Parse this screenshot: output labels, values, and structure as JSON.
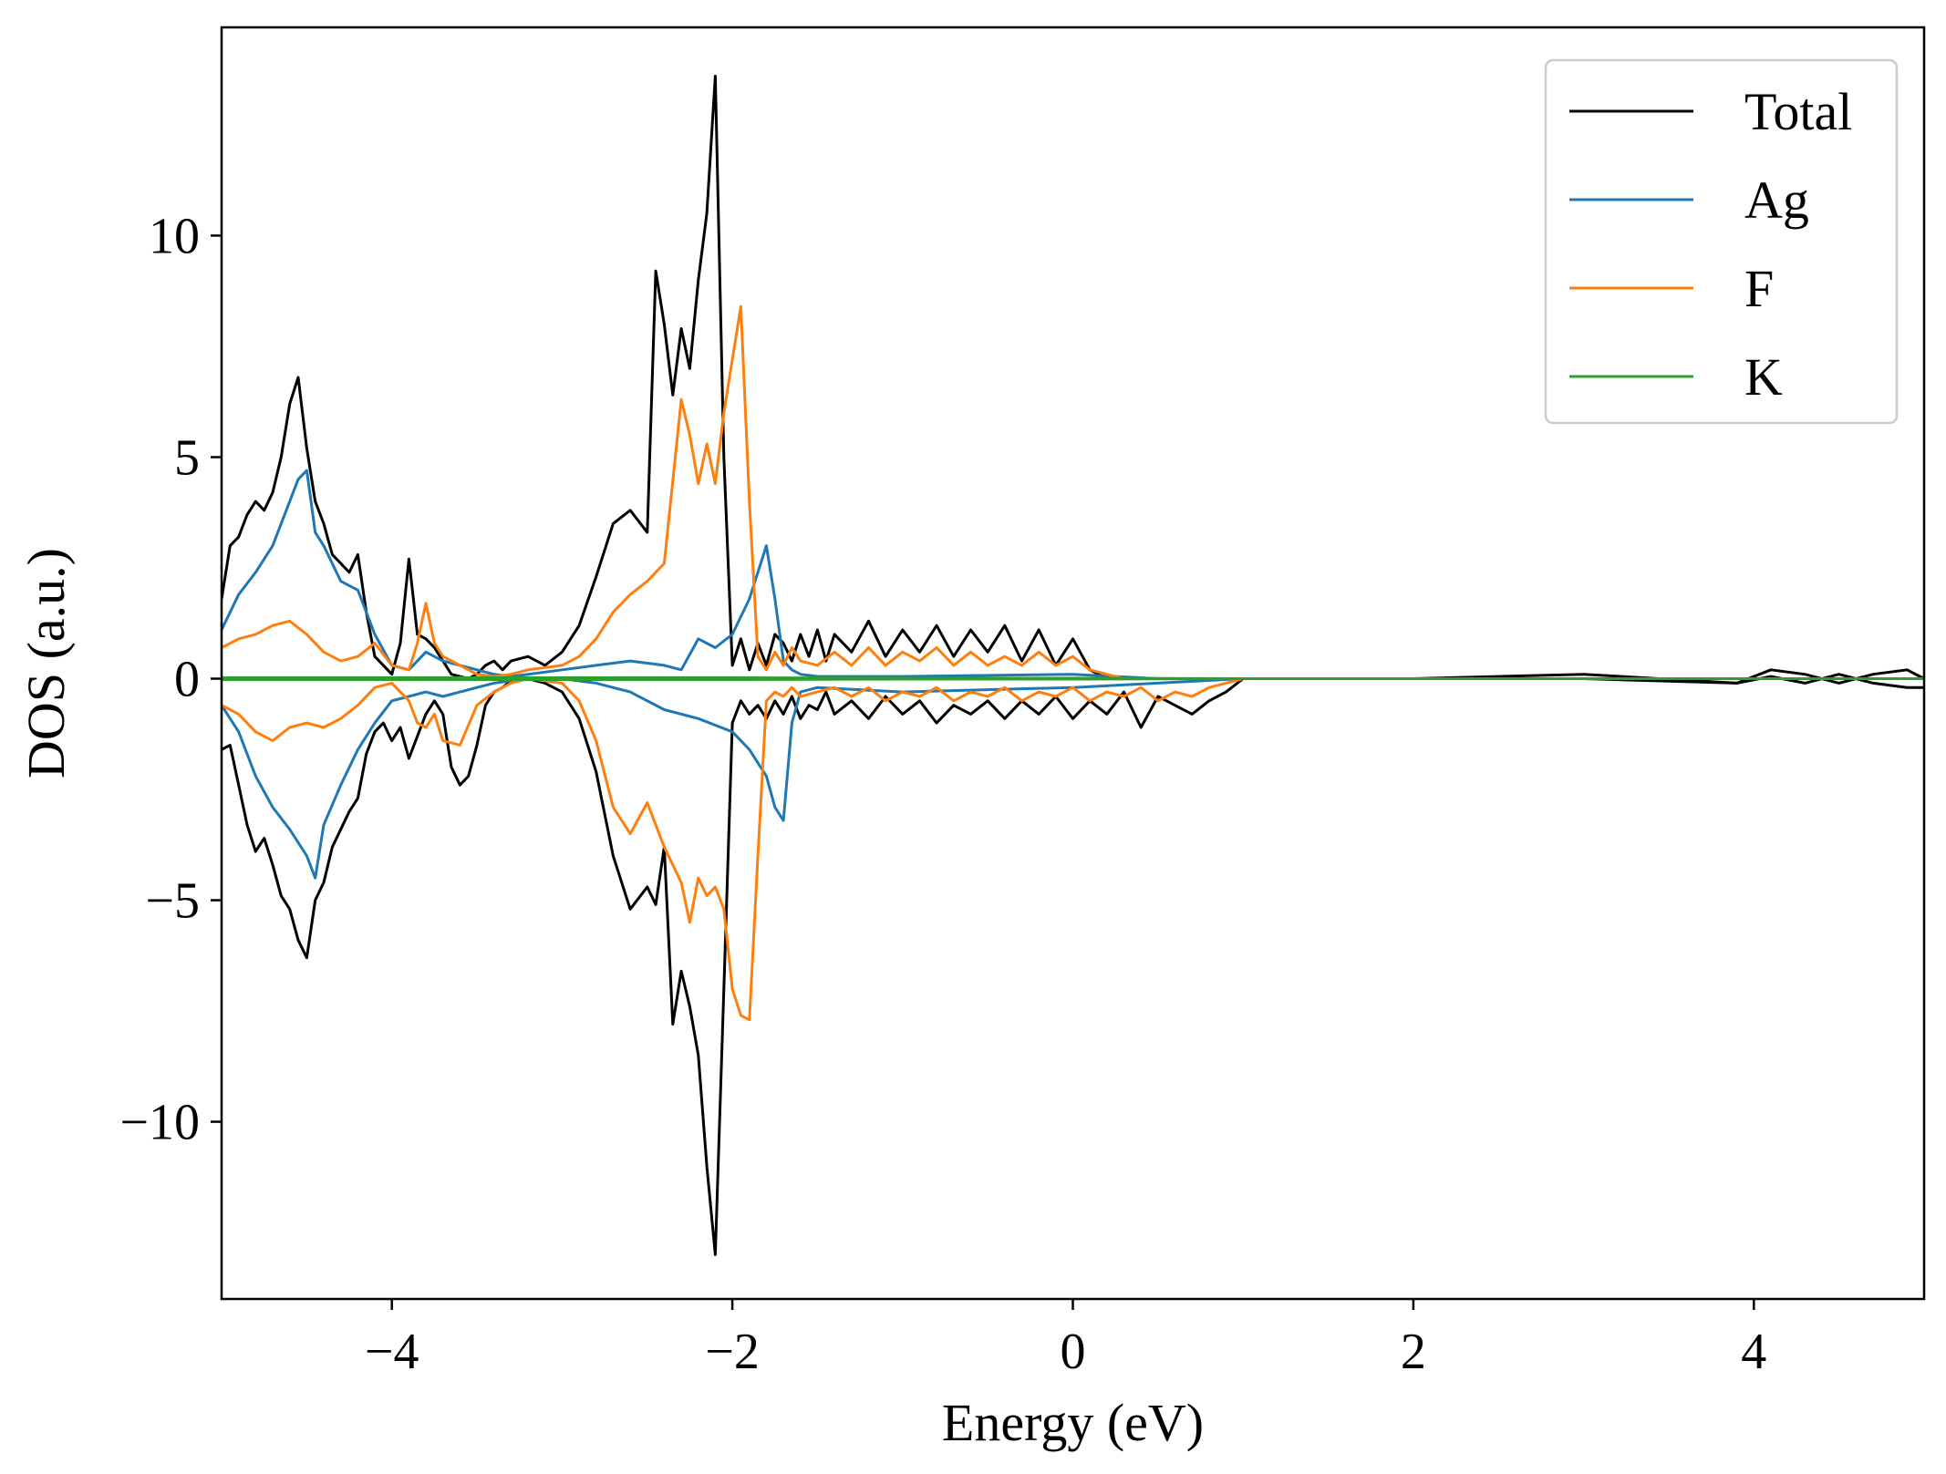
{
  "chart_data": {
    "type": "line",
    "title": "",
    "xlabel": "Energy (eV)",
    "ylabel": "DOS (a.u.)",
    "xlim": [
      -5,
      5
    ],
    "ylim": [
      -14,
      14.7
    ],
    "grid": false,
    "legend_position": "top-right",
    "xticks": [
      {
        "value": -4,
        "label": "−4"
      },
      {
        "value": -2,
        "label": "−2"
      },
      {
        "value": 0,
        "label": "0"
      },
      {
        "value": 2,
        "label": "2"
      },
      {
        "value": 4,
        "label": "4"
      }
    ],
    "yticks": [
      {
        "value": -10,
        "label": "−10"
      },
      {
        "value": -5,
        "label": "−5"
      },
      {
        "value": 0,
        "label": "0"
      },
      {
        "value": 5,
        "label": "5"
      },
      {
        "value": 10,
        "label": "10"
      }
    ],
    "series": [
      {
        "name": "Total",
        "color": "#000000",
        "segments": [
          {
            "x": [
              -5.0,
              -4.95,
              -4.9,
              -4.85,
              -4.8,
              -4.75,
              -4.7,
              -4.65,
              -4.6,
              -4.55,
              -4.5,
              -4.45,
              -4.4,
              -4.35,
              -4.3,
              -4.25,
              -4.2,
              -4.15,
              -4.1,
              -4.05,
              -4.0,
              -3.95,
              -3.9,
              -3.85,
              -3.8,
              -3.75,
              -3.7,
              -3.65,
              -3.6,
              -3.55,
              -3.5,
              -3.45,
              -3.4,
              -3.35,
              -3.3,
              -3.2,
              -3.1,
              -3.0,
              -2.9,
              -2.8,
              -2.7,
              -2.6,
              -2.5,
              -2.45,
              -2.4,
              -2.35,
              -2.3,
              -2.25,
              -2.2,
              -2.15,
              -2.1,
              -2.05,
              -2.0,
              -1.95,
              -1.9,
              -1.85,
              -1.8,
              -1.75,
              -1.7,
              -1.65,
              -1.6,
              -1.55,
              -1.5,
              -1.45,
              -1.4,
              -1.3,
              -1.2,
              -1.1,
              -1.0,
              -0.9,
              -0.8,
              -0.7,
              -0.6,
              -0.5,
              -0.4,
              -0.3,
              -0.2,
              -0.1,
              0.0,
              0.1,
              0.2,
              0.3,
              0.4,
              0.5,
              0.6,
              1.0,
              2.0,
              3.0,
              3.9,
              4.1,
              4.3,
              4.5,
              4.7,
              4.9,
              5.0
            ],
            "y": [
              1.8,
              3.0,
              3.2,
              3.7,
              4.0,
              3.8,
              4.2,
              5.0,
              6.2,
              6.8,
              5.2,
              4.0,
              3.5,
              2.8,
              2.6,
              2.4,
              2.8,
              1.5,
              0.5,
              0.3,
              0.1,
              0.8,
              2.7,
              1.0,
              0.9,
              0.7,
              0.4,
              0.1,
              0.05,
              0.0,
              0.1,
              0.3,
              0.4,
              0.2,
              0.4,
              0.5,
              0.3,
              0.6,
              1.2,
              2.3,
              3.5,
              3.8,
              3.3,
              9.2,
              8.0,
              6.4,
              7.9,
              7.0,
              9.0,
              10.5,
              13.6,
              5.0,
              0.3,
              0.9,
              0.2,
              0.8,
              0.3,
              1.0,
              0.8,
              0.4,
              1.0,
              0.5,
              1.1,
              0.4,
              1.0,
              0.6,
              1.3,
              0.5,
              1.1,
              0.6,
              1.2,
              0.5,
              1.1,
              0.6,
              1.2,
              0.4,
              1.1,
              0.3,
              0.9,
              0.2,
              0.0,
              0.0,
              0.0,
              0.0,
              0.0,
              0.0,
              0.0,
              0.1,
              -0.1,
              0.2,
              0.1,
              -0.1,
              0.1,
              0.2,
              0.0
            ]
          },
          {
            "x": [
              -5.0,
              -4.95,
              -4.9,
              -4.85,
              -4.8,
              -4.75,
              -4.7,
              -4.65,
              -4.6,
              -4.55,
              -4.5,
              -4.45,
              -4.4,
              -4.35,
              -4.3,
              -4.25,
              -4.2,
              -4.15,
              -4.1,
              -4.05,
              -4.0,
              -3.95,
              -3.9,
              -3.85,
              -3.8,
              -3.75,
              -3.7,
              -3.65,
              -3.6,
              -3.55,
              -3.5,
              -3.45,
              -3.4,
              -3.35,
              -3.3,
              -3.2,
              -3.1,
              -3.0,
              -2.9,
              -2.8,
              -2.7,
              -2.6,
              -2.5,
              -2.45,
              -2.4,
              -2.35,
              -2.3,
              -2.25,
              -2.2,
              -2.15,
              -2.1,
              -2.05,
              -2.0,
              -1.95,
              -1.9,
              -1.85,
              -1.8,
              -1.75,
              -1.7,
              -1.65,
              -1.6,
              -1.55,
              -1.5,
              -1.45,
              -1.4,
              -1.3,
              -1.2,
              -1.1,
              -1.0,
              -0.9,
              -0.8,
              -0.7,
              -0.6,
              -0.5,
              -0.4,
              -0.3,
              -0.2,
              -0.1,
              0.0,
              0.1,
              0.2,
              0.3,
              0.4,
              0.5,
              0.6,
              0.7,
              0.8,
              0.9,
              1.0,
              1.1,
              2.0,
              3.0,
              3.9,
              4.1,
              4.3,
              4.5,
              4.7,
              4.9,
              5.0
            ],
            "y": [
              -1.6,
              -1.5,
              -2.4,
              -3.3,
              -3.9,
              -3.6,
              -4.2,
              -4.9,
              -5.2,
              -5.9,
              -6.3,
              -5.0,
              -4.6,
              -3.8,
              -3.4,
              -3.0,
              -2.7,
              -1.7,
              -1.2,
              -1.0,
              -1.4,
              -1.1,
              -1.8,
              -1.3,
              -0.8,
              -0.5,
              -0.8,
              -2.0,
              -2.4,
              -2.2,
              -1.5,
              -0.6,
              -0.3,
              -0.2,
              -0.05,
              0.0,
              -0.1,
              -0.3,
              -0.9,
              -2.1,
              -4.0,
              -5.2,
              -4.7,
              -5.1,
              -3.8,
              -7.8,
              -6.6,
              -7.4,
              -8.5,
              -11.0,
              -13.0,
              -7.0,
              -1.0,
              -0.5,
              -0.8,
              -0.6,
              -0.9,
              -0.5,
              -0.8,
              -0.4,
              -0.9,
              -0.6,
              -0.7,
              -0.3,
              -0.8,
              -0.5,
              -0.9,
              -0.4,
              -0.8,
              -0.5,
              -1.0,
              -0.6,
              -0.8,
              -0.5,
              -0.9,
              -0.5,
              -0.8,
              -0.4,
              -0.9,
              -0.5,
              -0.8,
              -0.3,
              -1.1,
              -0.4,
              -0.6,
              -0.8,
              -0.5,
              -0.3,
              -0.0,
              0.0,
              0.0,
              0.0,
              -0.1,
              0.05,
              -0.1,
              0.1,
              -0.1,
              -0.2,
              -0.2
            ]
          }
        ]
      },
      {
        "name": "Ag",
        "color": "#1f77b4",
        "segments": [
          {
            "x": [
              -5.0,
              -4.9,
              -4.8,
              -4.7,
              -4.6,
              -4.55,
              -4.5,
              -4.45,
              -4.4,
              -4.3,
              -4.2,
              -4.1,
              -4.0,
              -3.9,
              -3.8,
              -3.7,
              -3.6,
              -3.5,
              -3.4,
              -3.3,
              -3.2,
              -3.0,
              -2.8,
              -2.6,
              -2.4,
              -2.3,
              -2.2,
              -2.1,
              -2.0,
              -1.9,
              -1.8,
              -1.75,
              -1.7,
              -1.65,
              -1.6,
              -1.5,
              -1.0,
              0.0,
              0.5,
              1.0,
              5.0
            ],
            "y": [
              1.1,
              1.9,
              2.4,
              3.0,
              4.0,
              4.5,
              4.7,
              3.3,
              3.0,
              2.2,
              2.0,
              1.0,
              0.3,
              0.2,
              0.6,
              0.4,
              0.3,
              0.2,
              0.1,
              0.05,
              0.1,
              0.2,
              0.3,
              0.4,
              0.3,
              0.2,
              0.9,
              0.7,
              1.0,
              1.8,
              3.0,
              1.8,
              0.4,
              0.2,
              0.1,
              0.05,
              0.05,
              0.1,
              0.0,
              0.0,
              0.0
            ]
          },
          {
            "x": [
              -5.0,
              -4.9,
              -4.8,
              -4.7,
              -4.6,
              -4.5,
              -4.45,
              -4.4,
              -4.3,
              -4.2,
              -4.1,
              -4.0,
              -3.9,
              -3.8,
              -3.7,
              -3.6,
              -3.5,
              -3.4,
              -3.3,
              -3.2,
              -3.0,
              -2.8,
              -2.6,
              -2.4,
              -2.2,
              -2.0,
              -1.9,
              -1.8,
              -1.75,
              -1.7,
              -1.65,
              -1.6,
              -1.5,
              -1.0,
              0.0,
              0.5,
              1.0,
              5.0
            ],
            "y": [
              -0.6,
              -1.2,
              -2.2,
              -2.9,
              -3.4,
              -4.0,
              -4.5,
              -3.3,
              -2.4,
              -1.6,
              -1.0,
              -0.5,
              -0.4,
              -0.3,
              -0.4,
              -0.3,
              -0.2,
              -0.1,
              -0.05,
              0.0,
              0.0,
              -0.1,
              -0.3,
              -0.7,
              -0.9,
              -1.2,
              -1.6,
              -2.2,
              -2.9,
              -3.2,
              -1.0,
              -0.3,
              -0.2,
              -0.3,
              -0.2,
              -0.1,
              0.0,
              0.0
            ]
          }
        ]
      },
      {
        "name": "F",
        "color": "#ff7f0e",
        "segments": [
          {
            "x": [
              -5.0,
              -4.9,
              -4.8,
              -4.7,
              -4.6,
              -4.5,
              -4.4,
              -4.3,
              -4.2,
              -4.1,
              -4.0,
              -3.9,
              -3.85,
              -3.8,
              -3.75,
              -3.7,
              -3.6,
              -3.5,
              -3.4,
              -3.3,
              -3.2,
              -3.0,
              -2.9,
              -2.8,
              -2.7,
              -2.6,
              -2.5,
              -2.4,
              -2.3,
              -2.25,
              -2.2,
              -2.15,
              -2.1,
              -2.05,
              -2.0,
              -1.95,
              -1.9,
              -1.85,
              -1.8,
              -1.75,
              -1.7,
              -1.65,
              -1.6,
              -1.5,
              -1.4,
              -1.3,
              -1.2,
              -1.1,
              -1.0,
              -0.9,
              -0.8,
              -0.7,
              -0.6,
              -0.5,
              -0.4,
              -0.3,
              -0.2,
              -0.1,
              0.0,
              0.1,
              0.2,
              0.3,
              0.4,
              0.5,
              0.6,
              1.0,
              2.0,
              5.0
            ],
            "y": [
              0.7,
              0.9,
              1.0,
              1.2,
              1.3,
              1.0,
              0.6,
              0.4,
              0.5,
              0.8,
              0.3,
              0.2,
              0.8,
              1.7,
              0.8,
              0.5,
              0.3,
              0.1,
              0.05,
              0.1,
              0.2,
              0.3,
              0.5,
              0.9,
              1.5,
              1.9,
              2.2,
              2.6,
              6.3,
              5.5,
              4.4,
              5.3,
              4.4,
              6.0,
              7.2,
              8.4,
              4.0,
              0.5,
              0.2,
              0.6,
              0.3,
              0.7,
              0.4,
              0.3,
              0.6,
              0.3,
              0.7,
              0.3,
              0.6,
              0.4,
              0.7,
              0.3,
              0.6,
              0.3,
              0.5,
              0.3,
              0.6,
              0.3,
              0.5,
              0.2,
              0.1,
              0.0,
              0.0,
              0.0,
              0.0,
              0.0,
              0.0,
              0.0
            ]
          },
          {
            "x": [
              -5.0,
              -4.9,
              -4.8,
              -4.7,
              -4.6,
              -4.5,
              -4.4,
              -4.3,
              -4.2,
              -4.1,
              -4.0,
              -3.9,
              -3.85,
              -3.8,
              -3.75,
              -3.7,
              -3.6,
              -3.5,
              -3.4,
              -3.3,
              -3.2,
              -3.0,
              -2.9,
              -2.8,
              -2.7,
              -2.6,
              -2.5,
              -2.4,
              -2.3,
              -2.25,
              -2.2,
              -2.15,
              -2.1,
              -2.05,
              -2.0,
              -1.95,
              -1.9,
              -1.85,
              -1.8,
              -1.75,
              -1.7,
              -1.65,
              -1.6,
              -1.5,
              -1.4,
              -1.3,
              -1.2,
              -1.1,
              -1.0,
              -0.9,
              -0.8,
              -0.7,
              -0.6,
              -0.5,
              -0.4,
              -0.3,
              -0.2,
              -0.1,
              0.0,
              0.1,
              0.2,
              0.3,
              0.4,
              0.5,
              0.6,
              0.7,
              0.8,
              0.9,
              1.0,
              1.1,
              2.0,
              5.0
            ],
            "y": [
              -0.6,
              -0.8,
              -1.2,
              -1.4,
              -1.1,
              -1.0,
              -1.1,
              -0.9,
              -0.6,
              -0.2,
              -0.1,
              -0.5,
              -1.0,
              -1.1,
              -0.8,
              -1.4,
              -1.5,
              -0.6,
              -0.3,
              -0.1,
              0.0,
              -0.1,
              -0.5,
              -1.4,
              -2.9,
              -3.5,
              -2.8,
              -3.8,
              -4.6,
              -5.5,
              -4.5,
              -4.9,
              -4.7,
              -5.2,
              -7.0,
              -7.6,
              -7.7,
              -4.0,
              -0.5,
              -0.3,
              -0.4,
              -0.2,
              -0.4,
              -0.3,
              -0.2,
              -0.4,
              -0.2,
              -0.5,
              -0.3,
              -0.4,
              -0.2,
              -0.5,
              -0.3,
              -0.4,
              -0.2,
              -0.5,
              -0.3,
              -0.4,
              -0.2,
              -0.5,
              -0.3,
              -0.4,
              -0.2,
              -0.5,
              -0.3,
              -0.4,
              -0.2,
              -0.1,
              0.0,
              0.0,
              0.0,
              0.0
            ]
          }
        ]
      },
      {
        "name": "K",
        "color": "#2ca02c",
        "segments": [
          {
            "x": [
              -5.0,
              -4.0,
              -3.0,
              -2.0,
              -1.0,
              0.0,
              1.0,
              2.0,
              3.0,
              4.0,
              5.0
            ],
            "y": [
              0.02,
              0.02,
              0.02,
              0.02,
              0.01,
              0.01,
              0.0,
              0.0,
              0.0,
              0.0,
              0.0
            ]
          },
          {
            "x": [
              -5.0,
              -4.0,
              -3.0,
              -2.0,
              -1.0,
              0.0,
              1.0,
              2.0,
              3.0,
              4.0,
              5.0
            ],
            "y": [
              -0.02,
              -0.02,
              -0.02,
              -0.02,
              -0.01,
              -0.01,
              0.0,
              0.0,
              0.0,
              0.0,
              0.0
            ]
          }
        ]
      }
    ]
  }
}
